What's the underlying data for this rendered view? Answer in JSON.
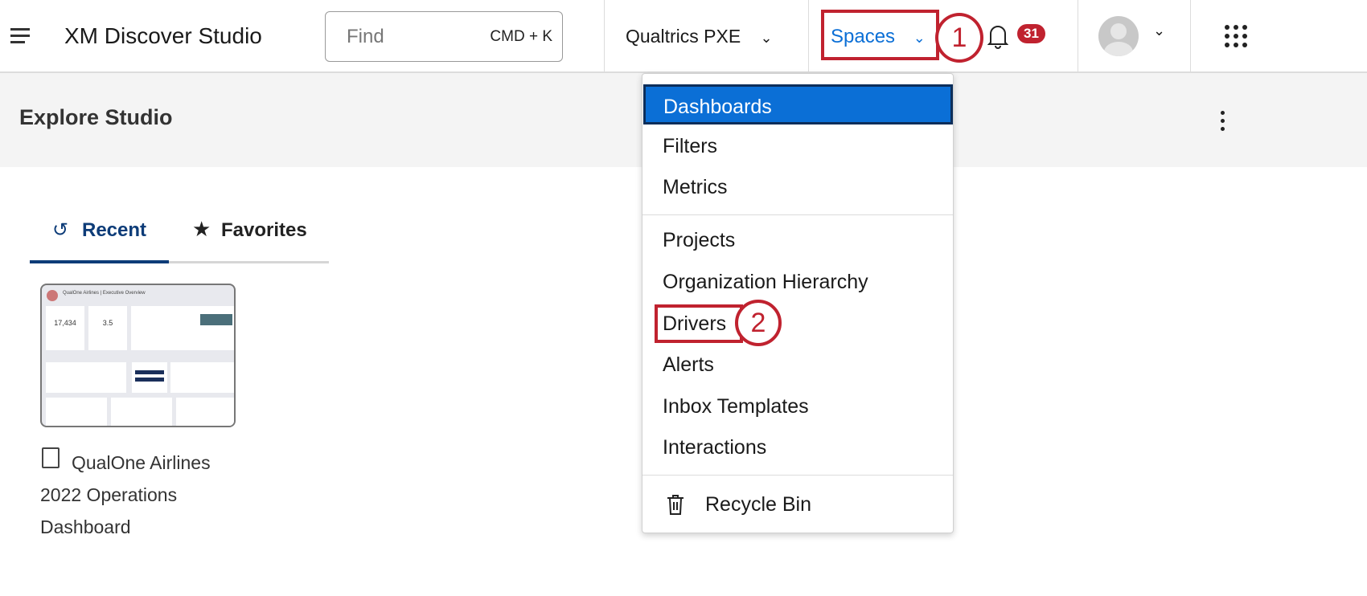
{
  "header": {
    "app_title": "XM Discover Studio",
    "search_placeholder": "Find",
    "search_shortcut": "CMD + K",
    "org_label": "Qualtrics PXE",
    "spaces_label": "Spaces",
    "notification_count": "31",
    "accent": "#0b6fd6"
  },
  "page": {
    "title": "Explore Studio"
  },
  "tabs": [
    {
      "label": "Recent",
      "icon": "history-icon",
      "active": true
    },
    {
      "label": "Favorites",
      "icon": "star-icon",
      "active": false
    }
  ],
  "recent_items": [
    {
      "title_line1": "QualOne Airlines",
      "title_line2": "2022 Operations",
      "title_line3": "Dashboard",
      "icon": "book-icon",
      "thumbnail": {
        "heading": "QualOne Airlines | Executive Overview",
        "kpi1": "17,434",
        "kpi2": "3.5"
      }
    }
  ],
  "spaces_menu": {
    "items": [
      "Dashboards",
      "Filters",
      "Metrics",
      "Projects",
      "Organization Hierarchy",
      "Drivers",
      "Alerts",
      "Inbox Templates",
      "Interactions"
    ],
    "recycle_bin": "Recycle Bin",
    "selected": "Dashboards"
  },
  "annotations": {
    "step1": "1",
    "step2": "2",
    "color": "#c0222f"
  }
}
